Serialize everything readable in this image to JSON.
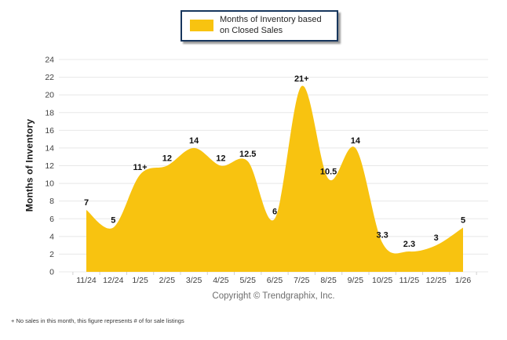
{
  "legend": {
    "label": "Months of Inventory based on Closed Sales"
  },
  "copyright": "Copyright © Trendgraphix, Inc.",
  "footnote": "+ No sales in this month, this figure represents # of for sale listings",
  "colors": {
    "area_fill": "#F8C310",
    "legend_border": "#17365D",
    "gridline": "#E8E8E8",
    "tick": "#D0D0D0",
    "axis_text": "#404040",
    "value_label": "#111111"
  },
  "chart_data": {
    "type": "area",
    "title": "Months of Inventory based on Closed Sales",
    "categories": [
      "11/24",
      "12/24",
      "1/25",
      "2/25",
      "3/25",
      "4/25",
      "5/25",
      "6/25",
      "7/25",
      "8/25",
      "9/25",
      "10/25",
      "11/25",
      "12/25",
      "1/26"
    ],
    "values": [
      7,
      5,
      11,
      12,
      14,
      12,
      12.5,
      6,
      21,
      10.5,
      14,
      3.3,
      2.3,
      3,
      5
    ],
    "point_labels": [
      "7",
      "5",
      "11+",
      "12",
      "14",
      "12",
      "12.5",
      "6",
      "21+",
      "10.5",
      "14",
      "3.3",
      "2.3",
      "3",
      "5"
    ],
    "xlabel": "",
    "ylabel": "Months of Inventory",
    "ylim": [
      0,
      24
    ],
    "ytick_step": 2,
    "grid": true,
    "legend_position": "top",
    "smooth": true
  }
}
